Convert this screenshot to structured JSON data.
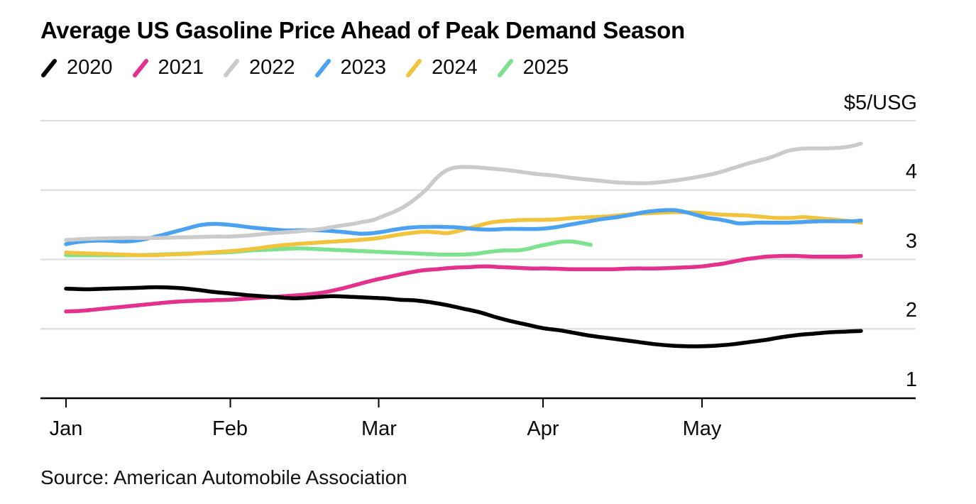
{
  "title": "Average US Gasoline Price Ahead of Peak Demand Season",
  "source": "Source: American Automobile Association",
  "colors": {
    "background": "#ffffff",
    "gridline": "#dcdcdc",
    "axis": "#000000",
    "text": "#0a0a0a"
  },
  "chart_data": {
    "type": "line",
    "title": "Average US Gasoline Price Ahead of Peak Demand Season",
    "xlabel": "",
    "ylabel": "$/USG",
    "unit_label": "$5/USG",
    "x_axis": {
      "labels": [
        "Jan",
        "Feb",
        "Mar",
        "Apr",
        "May"
      ],
      "tick_days": [
        1,
        32,
        60,
        91,
        121
      ],
      "domain_days": [
        1,
        151
      ]
    },
    "y_axis": {
      "tick_labels": [
        "4",
        "3",
        "2",
        "1"
      ],
      "tick_values": [
        4,
        3,
        2,
        1
      ],
      "gridline_values": [
        5,
        4,
        3,
        2
      ],
      "range": [
        1,
        5
      ]
    },
    "legend_position": "top-left",
    "grid": true,
    "series": [
      {
        "name": "2020",
        "color": "#000000",
        "points": [
          [
            1,
            2.58
          ],
          [
            5,
            2.57
          ],
          [
            9,
            2.58
          ],
          [
            14,
            2.59
          ],
          [
            18,
            2.6
          ],
          [
            22,
            2.59
          ],
          [
            26,
            2.56
          ],
          [
            29,
            2.53
          ],
          [
            32,
            2.51
          ],
          [
            36,
            2.48
          ],
          [
            40,
            2.46
          ],
          [
            44,
            2.44
          ],
          [
            47,
            2.45
          ],
          [
            51,
            2.47
          ],
          [
            55,
            2.46
          ],
          [
            58,
            2.45
          ],
          [
            61,
            2.44
          ],
          [
            64,
            2.42
          ],
          [
            67,
            2.41
          ],
          [
            70,
            2.38
          ],
          [
            73,
            2.34
          ],
          [
            76,
            2.29
          ],
          [
            79,
            2.24
          ],
          [
            82,
            2.17
          ],
          [
            85,
            2.11
          ],
          [
            88,
            2.06
          ],
          [
            91,
            2.01
          ],
          [
            94,
            1.98
          ],
          [
            97,
            1.94
          ],
          [
            100,
            1.9
          ],
          [
            103,
            1.87
          ],
          [
            106,
            1.84
          ],
          [
            109,
            1.81
          ],
          [
            112,
            1.78
          ],
          [
            115,
            1.76
          ],
          [
            118,
            1.75
          ],
          [
            121,
            1.75
          ],
          [
            124,
            1.76
          ],
          [
            127,
            1.78
          ],
          [
            130,
            1.81
          ],
          [
            133,
            1.84
          ],
          [
            136,
            1.88
          ],
          [
            139,
            1.91
          ],
          [
            142,
            1.93
          ],
          [
            145,
            1.95
          ],
          [
            148,
            1.96
          ],
          [
            151,
            1.97
          ]
        ]
      },
      {
        "name": "2021",
        "color": "#E5318E",
        "points": [
          [
            1,
            2.25
          ],
          [
            4,
            2.26
          ],
          [
            8,
            2.29
          ],
          [
            12,
            2.32
          ],
          [
            16,
            2.35
          ],
          [
            20,
            2.38
          ],
          [
            24,
            2.4
          ],
          [
            28,
            2.41
          ],
          [
            32,
            2.42
          ],
          [
            36,
            2.44
          ],
          [
            40,
            2.46
          ],
          [
            44,
            2.48
          ],
          [
            47,
            2.5
          ],
          [
            50,
            2.53
          ],
          [
            53,
            2.58
          ],
          [
            56,
            2.64
          ],
          [
            59,
            2.7
          ],
          [
            62,
            2.75
          ],
          [
            65,
            2.8
          ],
          [
            68,
            2.84
          ],
          [
            71,
            2.86
          ],
          [
            74,
            2.88
          ],
          [
            77,
            2.89
          ],
          [
            80,
            2.9
          ],
          [
            83,
            2.89
          ],
          [
            86,
            2.88
          ],
          [
            89,
            2.87
          ],
          [
            92,
            2.87
          ],
          [
            96,
            2.86
          ],
          [
            100,
            2.86
          ],
          [
            104,
            2.86
          ],
          [
            108,
            2.87
          ],
          [
            112,
            2.87
          ],
          [
            116,
            2.88
          ],
          [
            119,
            2.89
          ],
          [
            121,
            2.9
          ],
          [
            123,
            2.92
          ],
          [
            125,
            2.94
          ],
          [
            127,
            2.97
          ],
          [
            129,
            3.0
          ],
          [
            131,
            3.02
          ],
          [
            133,
            3.04
          ],
          [
            136,
            3.05
          ],
          [
            139,
            3.05
          ],
          [
            142,
            3.04
          ],
          [
            145,
            3.04
          ],
          [
            148,
            3.04
          ],
          [
            151,
            3.05
          ]
        ]
      },
      {
        "name": "2022",
        "color": "#CBCBCB",
        "points": [
          [
            1,
            3.28
          ],
          [
            6,
            3.3
          ],
          [
            12,
            3.31
          ],
          [
            18,
            3.31
          ],
          [
            24,
            3.32
          ],
          [
            29,
            3.33
          ],
          [
            32,
            3.33
          ],
          [
            36,
            3.35
          ],
          [
            40,
            3.38
          ],
          [
            44,
            3.4
          ],
          [
            47,
            3.42
          ],
          [
            50,
            3.45
          ],
          [
            53,
            3.49
          ],
          [
            55,
            3.51
          ],
          [
            57,
            3.54
          ],
          [
            59,
            3.57
          ],
          [
            61,
            3.63
          ],
          [
            63,
            3.69
          ],
          [
            65,
            3.77
          ],
          [
            67,
            3.88
          ],
          [
            69,
            4.01
          ],
          [
            71,
            4.18
          ],
          [
            73,
            4.29
          ],
          [
            75,
            4.33
          ],
          [
            78,
            4.33
          ],
          [
            81,
            4.31
          ],
          [
            84,
            4.29
          ],
          [
            87,
            4.26
          ],
          [
            90,
            4.23
          ],
          [
            93,
            4.21
          ],
          [
            97,
            4.17
          ],
          [
            101,
            4.14
          ],
          [
            105,
            4.11
          ],
          [
            108,
            4.1
          ],
          [
            111,
            4.1
          ],
          [
            114,
            4.12
          ],
          [
            117,
            4.15
          ],
          [
            121,
            4.2
          ],
          [
            124,
            4.25
          ],
          [
            127,
            4.32
          ],
          [
            130,
            4.39
          ],
          [
            133,
            4.45
          ],
          [
            135,
            4.5
          ],
          [
            137,
            4.56
          ],
          [
            139,
            4.59
          ],
          [
            141,
            4.6
          ],
          [
            144,
            4.6
          ],
          [
            147,
            4.61
          ],
          [
            149,
            4.63
          ],
          [
            151,
            4.67
          ]
        ]
      },
      {
        "name": "2023",
        "color": "#4BA2F0",
        "points": [
          [
            1,
            3.22
          ],
          [
            3,
            3.25
          ],
          [
            6,
            3.27
          ],
          [
            9,
            3.27
          ],
          [
            12,
            3.26
          ],
          [
            15,
            3.28
          ],
          [
            18,
            3.33
          ],
          [
            21,
            3.39
          ],
          [
            24,
            3.45
          ],
          [
            26,
            3.49
          ],
          [
            28,
            3.51
          ],
          [
            30,
            3.51
          ],
          [
            33,
            3.49
          ],
          [
            36,
            3.46
          ],
          [
            39,
            3.44
          ],
          [
            42,
            3.42
          ],
          [
            45,
            3.42
          ],
          [
            48,
            3.42
          ],
          [
            51,
            3.41
          ],
          [
            54,
            3.39
          ],
          [
            57,
            3.37
          ],
          [
            60,
            3.39
          ],
          [
            63,
            3.43
          ],
          [
            66,
            3.46
          ],
          [
            69,
            3.47
          ],
          [
            72,
            3.47
          ],
          [
            75,
            3.46
          ],
          [
            78,
            3.44
          ],
          [
            81,
            3.43
          ],
          [
            84,
            3.44
          ],
          [
            87,
            3.44
          ],
          [
            90,
            3.44
          ],
          [
            93,
            3.46
          ],
          [
            96,
            3.5
          ],
          [
            99,
            3.54
          ],
          [
            102,
            3.58
          ],
          [
            105,
            3.61
          ],
          [
            108,
            3.65
          ],
          [
            110,
            3.68
          ],
          [
            112,
            3.7
          ],
          [
            114,
            3.71
          ],
          [
            116,
            3.71
          ],
          [
            118,
            3.68
          ],
          [
            120,
            3.64
          ],
          [
            122,
            3.6
          ],
          [
            124,
            3.58
          ],
          [
            126,
            3.55
          ],
          [
            128,
            3.52
          ],
          [
            131,
            3.53
          ],
          [
            134,
            3.53
          ],
          [
            137,
            3.53
          ],
          [
            140,
            3.54
          ],
          [
            143,
            3.55
          ],
          [
            146,
            3.55
          ],
          [
            149,
            3.55
          ],
          [
            151,
            3.56
          ]
        ]
      },
      {
        "name": "2024",
        "color": "#F2C43E",
        "points": [
          [
            1,
            3.1
          ],
          [
            4,
            3.09
          ],
          [
            8,
            3.08
          ],
          [
            12,
            3.07
          ],
          [
            16,
            3.06
          ],
          [
            20,
            3.07
          ],
          [
            24,
            3.08
          ],
          [
            28,
            3.1
          ],
          [
            32,
            3.12
          ],
          [
            36,
            3.15
          ],
          [
            40,
            3.19
          ],
          [
            44,
            3.22
          ],
          [
            48,
            3.24
          ],
          [
            52,
            3.26
          ],
          [
            56,
            3.28
          ],
          [
            59,
            3.3
          ],
          [
            61,
            3.32
          ],
          [
            64,
            3.36
          ],
          [
            67,
            3.39
          ],
          [
            69,
            3.4
          ],
          [
            71,
            3.39
          ],
          [
            73,
            3.38
          ],
          [
            75,
            3.41
          ],
          [
            77,
            3.45
          ],
          [
            79,
            3.49
          ],
          [
            81,
            3.53
          ],
          [
            83,
            3.55
          ],
          [
            85,
            3.56
          ],
          [
            88,
            3.57
          ],
          [
            91,
            3.57
          ],
          [
            94,
            3.58
          ],
          [
            97,
            3.6
          ],
          [
            100,
            3.61
          ],
          [
            103,
            3.62
          ],
          [
            106,
            3.64
          ],
          [
            109,
            3.66
          ],
          [
            112,
            3.67
          ],
          [
            115,
            3.68
          ],
          [
            118,
            3.68
          ],
          [
            121,
            3.67
          ],
          [
            124,
            3.65
          ],
          [
            127,
            3.64
          ],
          [
            130,
            3.63
          ],
          [
            133,
            3.61
          ],
          [
            135,
            3.6
          ],
          [
            138,
            3.6
          ],
          [
            140,
            3.61
          ],
          [
            142,
            3.6
          ],
          [
            145,
            3.58
          ],
          [
            148,
            3.56
          ],
          [
            151,
            3.53
          ]
        ]
      },
      {
        "name": "2025",
        "color": "#7CE28D",
        "points": [
          [
            1,
            3.06
          ],
          [
            5,
            3.06
          ],
          [
            10,
            3.06
          ],
          [
            14,
            3.06
          ],
          [
            18,
            3.07
          ],
          [
            22,
            3.08
          ],
          [
            26,
            3.09
          ],
          [
            30,
            3.1
          ],
          [
            33,
            3.11
          ],
          [
            36,
            3.13
          ],
          [
            39,
            3.14
          ],
          [
            42,
            3.15
          ],
          [
            45,
            3.16
          ],
          [
            48,
            3.15
          ],
          [
            51,
            3.14
          ],
          [
            54,
            3.13
          ],
          [
            57,
            3.12
          ],
          [
            60,
            3.11
          ],
          [
            63,
            3.1
          ],
          [
            66,
            3.09
          ],
          [
            69,
            3.08
          ],
          [
            72,
            3.07
          ],
          [
            75,
            3.07
          ],
          [
            78,
            3.08
          ],
          [
            80,
            3.1
          ],
          [
            82,
            3.12
          ],
          [
            84,
            3.13
          ],
          [
            86,
            3.13
          ],
          [
            88,
            3.15
          ],
          [
            90,
            3.19
          ],
          [
            92,
            3.22
          ],
          [
            94,
            3.25
          ],
          [
            96,
            3.26
          ],
          [
            98,
            3.24
          ],
          [
            100,
            3.21
          ]
        ]
      }
    ]
  }
}
